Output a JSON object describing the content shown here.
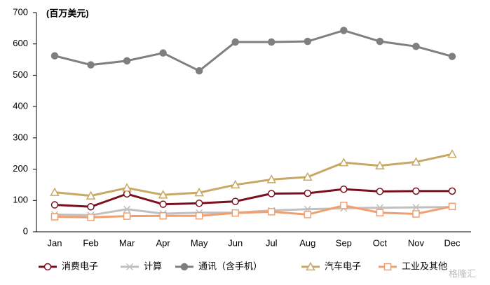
{
  "chart_data": {
    "type": "line",
    "y_label": "(百万美元)",
    "watermark": "格隆汇",
    "categories": [
      "Jan",
      "Feb",
      "Mar",
      "Apr",
      "May",
      "Jun",
      "Jul",
      "Aug",
      "Sep",
      "Oct",
      "Nov",
      "Dec"
    ],
    "ylim": [
      0,
      700
    ],
    "yticks": [
      0,
      100,
      200,
      300,
      400,
      500,
      600,
      700
    ],
    "grid": false,
    "series": [
      {
        "name": "消费电子",
        "color": "#7b0f1e",
        "marker": "circle-open",
        "values": [
          86,
          80,
          121,
          88,
          91,
          97,
          122,
          123,
          136,
          129,
          130,
          130
        ]
      },
      {
        "name": "计算",
        "color": "#c0c0c0",
        "marker": "x",
        "values": [
          55,
          53,
          72,
          58,
          61,
          61,
          68,
          72,
          75,
          77,
          78,
          79
        ]
      },
      {
        "name": "通讯（含手机）",
        "color": "#7f7f7f",
        "marker": "circle",
        "values": [
          562,
          533,
          546,
          571,
          514,
          606,
          606,
          608,
          643,
          608,
          592,
          560
        ]
      },
      {
        "name": "汽车电子",
        "color": "#c8a865",
        "marker": "triangle-open",
        "values": [
          126,
          115,
          140,
          118,
          125,
          150,
          167,
          175,
          221,
          211,
          223,
          248
        ]
      },
      {
        "name": "工业及其他",
        "color": "#f0a070",
        "marker": "square-open",
        "values": [
          48,
          46,
          50,
          51,
          51,
          60,
          64,
          55,
          84,
          61,
          57,
          81
        ]
      }
    ]
  }
}
